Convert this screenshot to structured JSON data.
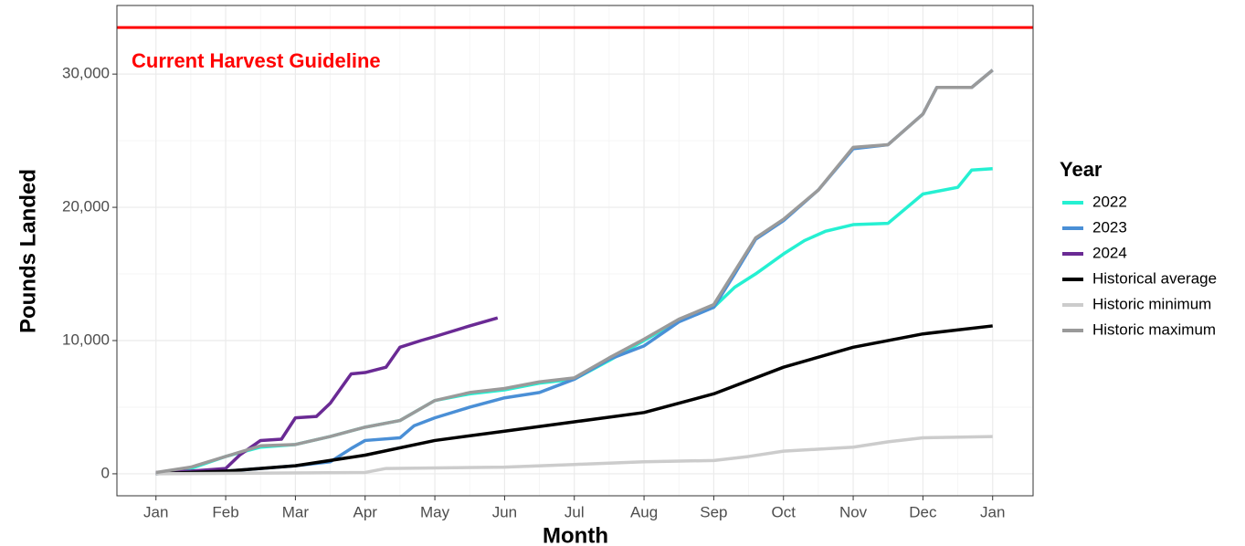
{
  "chart_data": {
    "type": "line",
    "xlabel": "Month",
    "ylabel": "Pounds Landed",
    "legend_title": "Year",
    "legend_position": "right",
    "grid": true,
    "guideline": {
      "label": "Current Harvest Guideline",
      "value": 33500,
      "color": "#ff0000"
    },
    "xlim": [
      -0.56,
      12.58
    ],
    "xticks": [
      {
        "value": 0,
        "label": "Jan"
      },
      {
        "value": 1,
        "label": "Feb"
      },
      {
        "value": 2,
        "label": "Mar"
      },
      {
        "value": 3,
        "label": "Apr"
      },
      {
        "value": 4,
        "label": "May"
      },
      {
        "value": 5,
        "label": "Jun"
      },
      {
        "value": 6,
        "label": "Jul"
      },
      {
        "value": 7,
        "label": "Aug"
      },
      {
        "value": 8,
        "label": "Sep"
      },
      {
        "value": 9,
        "label": "Oct"
      },
      {
        "value": 10,
        "label": "Nov"
      },
      {
        "value": 11,
        "label": "Dec"
      },
      {
        "value": 12,
        "label": "Jan"
      }
    ],
    "xminor": [
      0.5,
      1.5,
      2.5,
      3.5,
      4.5,
      5.5,
      6.5,
      7.5,
      8.5,
      9.5,
      10.5,
      11.5
    ],
    "ylim": [
      -1650,
      35150
    ],
    "yticks": [
      0,
      {
        "value": 10000,
        "label": "10,000"
      },
      {
        "value": 20000,
        "label": "20,000"
      },
      {
        "value": 30000,
        "label": "30,000"
      }
    ],
    "yminor": [
      5000,
      15000,
      25000
    ],
    "series": [
      {
        "name": "2022",
        "color": "#25f0d2",
        "x": [
          0,
          0.5,
          1,
          1.5,
          2,
          2.5,
          3,
          3.5,
          4,
          4.5,
          5,
          5.5,
          6,
          6.5,
          7,
          7.5,
          8,
          8.3,
          8.6,
          9,
          9.3,
          9.6,
          10,
          10.5,
          11,
          11.5,
          11.7,
          12
        ],
        "values": [
          0,
          400,
          1300,
          2000,
          2200,
          2800,
          3500,
          4000,
          5500,
          6000,
          6300,
          6800,
          7100,
          8500,
          10000,
          11500,
          12500,
          14000,
          15000,
          16500,
          17500,
          18200,
          18700,
          18800,
          21000,
          21500,
          22800,
          22900
        ]
      },
      {
        "name": "2023",
        "color": "#4a8fd6",
        "x": [
          0,
          0.5,
          1,
          1.5,
          2,
          2.5,
          2.8,
          3,
          3.5,
          3.7,
          4,
          4.5,
          5,
          5.5,
          6,
          6.5,
          7,
          7.5,
          8,
          8.3,
          8.6,
          9,
          9.5,
          10,
          10.5,
          11,
          11.2,
          11.7,
          12
        ],
        "values": [
          0,
          100,
          200,
          400,
          600,
          900,
          1900,
          2500,
          2700,
          3600,
          4200,
          5000,
          5700,
          6100,
          7100,
          8600,
          9600,
          11400,
          12500,
          15000,
          17600,
          19000,
          21300,
          24400,
          24700,
          27000,
          29000,
          29000,
          30300
        ]
      },
      {
        "name": "2024",
        "color": "#6a2a94",
        "x": [
          0,
          0.5,
          1,
          1.2,
          1.5,
          1.8,
          2,
          2.3,
          2.5,
          2.8,
          3,
          3.3,
          3.5,
          3.8,
          4,
          4.5,
          4.9
        ],
        "values": [
          100,
          200,
          400,
          1400,
          2500,
          2600,
          4200,
          4300,
          5300,
          7500,
          7600,
          8000,
          9500,
          10000,
          10300,
          11100,
          11700
        ]
      },
      {
        "name": "Historical average",
        "color": "#000000",
        "x": [
          0,
          1,
          2,
          3,
          4,
          5,
          6,
          7,
          8,
          9,
          10,
          11,
          12
        ],
        "values": [
          0,
          200,
          600,
          1400,
          2500,
          3200,
          3900,
          4600,
          6000,
          8000,
          9500,
          10500,
          11100
        ]
      },
      {
        "name": "Historic minimum",
        "color": "#cccccc",
        "x": [
          0,
          3,
          3.3,
          5,
          6,
          7,
          8,
          8.5,
          9,
          10,
          10.5,
          11,
          12
        ],
        "values": [
          0,
          100,
          400,
          500,
          700,
          900,
          1000,
          1300,
          1700,
          2000,
          2400,
          2700,
          2800
        ]
      },
      {
        "name": "Historic maximum",
        "color": "#9a9a9a",
        "x": [
          0,
          0.5,
          1,
          1.5,
          2,
          2.5,
          3,
          3.5,
          4,
          4.5,
          5,
          5.5,
          6,
          6.5,
          7,
          7.5,
          8,
          8.3,
          8.6,
          9,
          9.5,
          10,
          10.5,
          11,
          11.2,
          11.7,
          12
        ],
        "values": [
          100,
          500,
          1300,
          2100,
          2200,
          2800,
          3500,
          4000,
          5500,
          6100,
          6400,
          6900,
          7200,
          8700,
          10100,
          11600,
          12700,
          15200,
          17700,
          19100,
          21300,
          24500,
          24700,
          27000,
          29000,
          29000,
          30300
        ]
      }
    ]
  }
}
